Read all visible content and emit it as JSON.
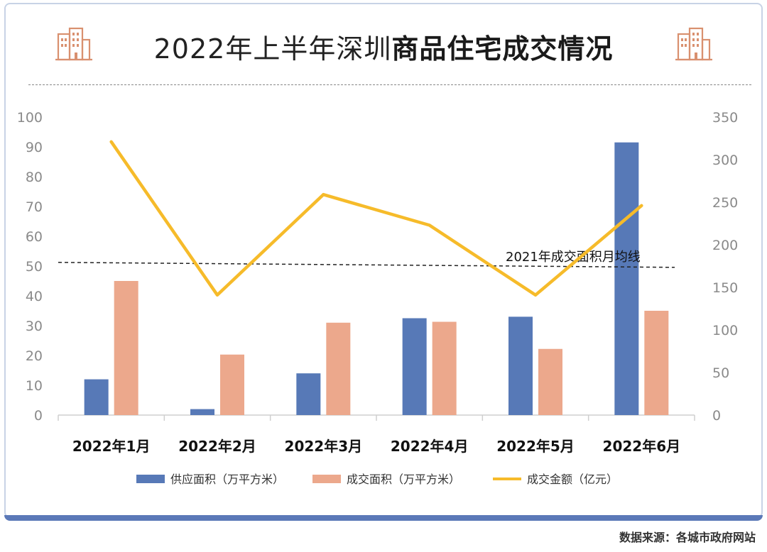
{
  "title": {
    "part1": "2022年上半年深圳",
    "part2": "商品住宅成交情况"
  },
  "icons": {
    "left": "building-icon",
    "right": "building-icon"
  },
  "colors": {
    "supply": "#5779b7",
    "deal_area": "#eca88c",
    "deal_amount": "#f6bb2a",
    "frame": "#c8d3e6",
    "accent": "#5b79b8"
  },
  "source": "数据来源：各城市政府网站",
  "chart_data": {
    "type": "bar",
    "categories": [
      "2022年1月",
      "2022年2月",
      "2022年3月",
      "2022年4月",
      "2022年5月",
      "2022年6月"
    ],
    "series": [
      {
        "name": "供应面积（万平方米）",
        "type": "bar",
        "axis": "left",
        "values": [
          12,
          2,
          14,
          32.5,
          33,
          91.5
        ]
      },
      {
        "name": "成交面积（万平方米）",
        "type": "bar",
        "axis": "left",
        "values": [
          45,
          20.3,
          31,
          31.3,
          22.2,
          35
        ]
      },
      {
        "name": "成交金额（亿元）",
        "type": "line",
        "axis": "right",
        "values": [
          321,
          141,
          259,
          223,
          141,
          246
        ]
      }
    ],
    "left_axis": {
      "min": 0,
      "max": 100,
      "ticks": [
        0,
        10,
        20,
        30,
        40,
        50,
        60,
        70,
        80,
        90,
        100
      ]
    },
    "right_axis": {
      "min": 0,
      "max": 350,
      "ticks": [
        0,
        50,
        100,
        150,
        200,
        250,
        300,
        350
      ]
    },
    "reference_line": {
      "label": "2021年成交面积月均线",
      "value": 51,
      "axis": "left"
    },
    "legend_position": "bottom",
    "grid": false
  }
}
